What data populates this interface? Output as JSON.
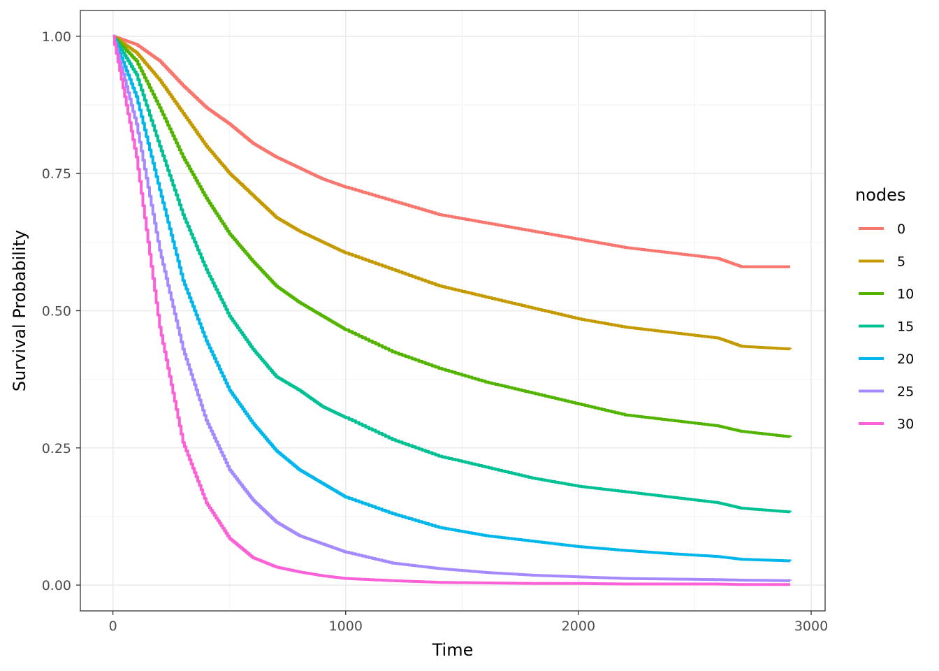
{
  "chart_data": {
    "type": "line",
    "xlabel": "Time",
    "ylabel": "Survival Probability",
    "xlim": [
      -140,
      3060
    ],
    "ylim": [
      -0.047,
      1.047
    ],
    "x_ticks": [
      0,
      1000,
      2000,
      3000
    ],
    "x_tick_labels": [
      "0",
      "1000",
      "2000",
      "3000"
    ],
    "y_ticks": [
      0,
      0.25,
      0.5,
      0.75,
      1
    ],
    "y_tick_labels": [
      "0.00",
      "0.25",
      "0.50",
      "0.75",
      "1.00"
    ],
    "grid": true,
    "legend_title": "nodes",
    "legend_position": "right",
    "series": [
      {
        "name": "0",
        "color": "#F8766D",
        "points": [
          [
            0,
            1.0
          ],
          [
            100,
            0.985
          ],
          [
            200,
            0.955
          ],
          [
            300,
            0.91
          ],
          [
            400,
            0.87
          ],
          [
            500,
            0.84
          ],
          [
            600,
            0.805
          ],
          [
            700,
            0.78
          ],
          [
            800,
            0.76
          ],
          [
            900,
            0.74
          ],
          [
            1000,
            0.725
          ],
          [
            1200,
            0.7
          ],
          [
            1400,
            0.675
          ],
          [
            1600,
            0.66
          ],
          [
            1800,
            0.645
          ],
          [
            2000,
            0.63
          ],
          [
            2200,
            0.615
          ],
          [
            2400,
            0.605
          ],
          [
            2600,
            0.595
          ],
          [
            2700,
            0.58
          ],
          [
            2910,
            0.58
          ]
        ]
      },
      {
        "name": "5",
        "color": "#C49A00",
        "points": [
          [
            0,
            1.0
          ],
          [
            100,
            0.97
          ],
          [
            200,
            0.92
          ],
          [
            300,
            0.86
          ],
          [
            400,
            0.8
          ],
          [
            500,
            0.75
          ],
          [
            600,
            0.71
          ],
          [
            700,
            0.67
          ],
          [
            800,
            0.645
          ],
          [
            900,
            0.625
          ],
          [
            1000,
            0.605
          ],
          [
            1200,
            0.575
          ],
          [
            1400,
            0.545
          ],
          [
            1600,
            0.525
          ],
          [
            1800,
            0.505
          ],
          [
            2000,
            0.485
          ],
          [
            2200,
            0.47
          ],
          [
            2400,
            0.46
          ],
          [
            2600,
            0.45
          ],
          [
            2700,
            0.435
          ],
          [
            2910,
            0.43
          ]
        ]
      },
      {
        "name": "10",
        "color": "#53B400",
        "points": [
          [
            0,
            1.0
          ],
          [
            100,
            0.955
          ],
          [
            200,
            0.87
          ],
          [
            300,
            0.78
          ],
          [
            400,
            0.705
          ],
          [
            500,
            0.64
          ],
          [
            600,
            0.59
          ],
          [
            700,
            0.545
          ],
          [
            800,
            0.515
          ],
          [
            900,
            0.49
          ],
          [
            1000,
            0.465
          ],
          [
            1200,
            0.425
          ],
          [
            1400,
            0.395
          ],
          [
            1600,
            0.37
          ],
          [
            1800,
            0.35
          ],
          [
            2000,
            0.33
          ],
          [
            2200,
            0.31
          ],
          [
            2400,
            0.3
          ],
          [
            2600,
            0.29
          ],
          [
            2700,
            0.28
          ],
          [
            2910,
            0.27
          ]
        ]
      },
      {
        "name": "15",
        "color": "#00C094",
        "points": [
          [
            0,
            1.0
          ],
          [
            100,
            0.93
          ],
          [
            200,
            0.8
          ],
          [
            300,
            0.675
          ],
          [
            400,
            0.575
          ],
          [
            500,
            0.49
          ],
          [
            600,
            0.43
          ],
          [
            700,
            0.38
          ],
          [
            800,
            0.355
          ],
          [
            900,
            0.325
          ],
          [
            1000,
            0.305
          ],
          [
            1200,
            0.265
          ],
          [
            1400,
            0.235
          ],
          [
            1600,
            0.215
          ],
          [
            1800,
            0.195
          ],
          [
            2000,
            0.18
          ],
          [
            2200,
            0.17
          ],
          [
            2400,
            0.16
          ],
          [
            2600,
            0.15
          ],
          [
            2700,
            0.14
          ],
          [
            2910,
            0.133
          ]
        ]
      },
      {
        "name": "20",
        "color": "#00B6EB",
        "points": [
          [
            0,
            1.0
          ],
          [
            100,
            0.89
          ],
          [
            200,
            0.72
          ],
          [
            300,
            0.555
          ],
          [
            400,
            0.445
          ],
          [
            500,
            0.355
          ],
          [
            600,
            0.295
          ],
          [
            700,
            0.245
          ],
          [
            800,
            0.21
          ],
          [
            900,
            0.185
          ],
          [
            1000,
            0.16
          ],
          [
            1200,
            0.13
          ],
          [
            1400,
            0.105
          ],
          [
            1600,
            0.09
          ],
          [
            1800,
            0.08
          ],
          [
            2000,
            0.07
          ],
          [
            2200,
            0.063
          ],
          [
            2400,
            0.057
          ],
          [
            2600,
            0.052
          ],
          [
            2700,
            0.047
          ],
          [
            2910,
            0.044
          ]
        ]
      },
      {
        "name": "25",
        "color": "#A58AFF",
        "points": [
          [
            0,
            1.0
          ],
          [
            100,
            0.84
          ],
          [
            200,
            0.61
          ],
          [
            300,
            0.43
          ],
          [
            400,
            0.3
          ],
          [
            500,
            0.21
          ],
          [
            600,
            0.155
          ],
          [
            700,
            0.115
          ],
          [
            800,
            0.09
          ],
          [
            900,
            0.075
          ],
          [
            1000,
            0.06
          ],
          [
            1200,
            0.04
          ],
          [
            1400,
            0.03
          ],
          [
            1600,
            0.023
          ],
          [
            1800,
            0.018
          ],
          [
            2000,
            0.015
          ],
          [
            2200,
            0.012
          ],
          [
            2400,
            0.011
          ],
          [
            2600,
            0.01
          ],
          [
            2700,
            0.009
          ],
          [
            2910,
            0.008
          ]
        ]
      },
      {
        "name": "30",
        "color": "#FB61D7",
        "points": [
          [
            0,
            1.0
          ],
          [
            100,
            0.78
          ],
          [
            200,
            0.47
          ],
          [
            300,
            0.26
          ],
          [
            400,
            0.15
          ],
          [
            500,
            0.085
          ],
          [
            600,
            0.05
          ],
          [
            700,
            0.033
          ],
          [
            800,
            0.024
          ],
          [
            900,
            0.017
          ],
          [
            1000,
            0.012
          ],
          [
            1200,
            0.008
          ],
          [
            1400,
            0.005
          ],
          [
            1600,
            0.004
          ],
          [
            1800,
            0.003
          ],
          [
            2000,
            0.003
          ],
          [
            2200,
            0.002
          ],
          [
            2400,
            0.002
          ],
          [
            2600,
            0.002
          ],
          [
            2700,
            0.001
          ],
          [
            2910,
            0.001
          ]
        ]
      }
    ]
  }
}
